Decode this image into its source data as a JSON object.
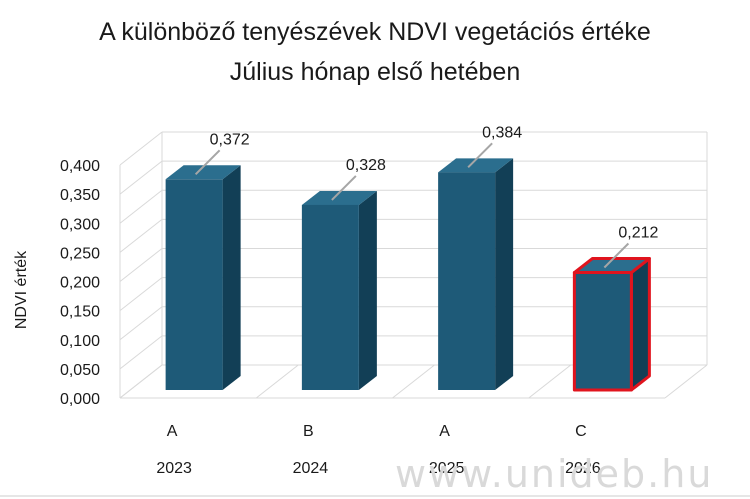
{
  "title_line1": "A különböző tenyészévek NDVI vegetációs értéke",
  "title_line2": "Július hónap első hetében",
  "watermark": "www.unideb.hu",
  "chart_data": {
    "type": "bar",
    "ylabel": "NDVI érték",
    "ylim": [
      0,
      0.4
    ],
    "yticks": [
      "0,000",
      "0,050",
      "0,100",
      "0,150",
      "0,200",
      "0,250",
      "0,300",
      "0,350",
      "0,400"
    ],
    "categories": [
      "2023",
      "2024",
      "2025",
      "2026"
    ],
    "groups": [
      "A",
      "B",
      "A",
      "C"
    ],
    "values": [
      0.372,
      0.328,
      0.384,
      0.212
    ],
    "value_labels": [
      "0,372",
      "0,328",
      "0,384",
      "0,212"
    ],
    "highlighted": [
      false,
      false,
      false,
      true
    ],
    "grid": true,
    "colors": {
      "bar_front": "#1e5a78",
      "bar_side": "#123f56",
      "bar_top": "#2b6e8e",
      "highlight_border": "#e0141e",
      "grid": "#d9d9d9",
      "text": "#1a1a1a"
    }
  }
}
